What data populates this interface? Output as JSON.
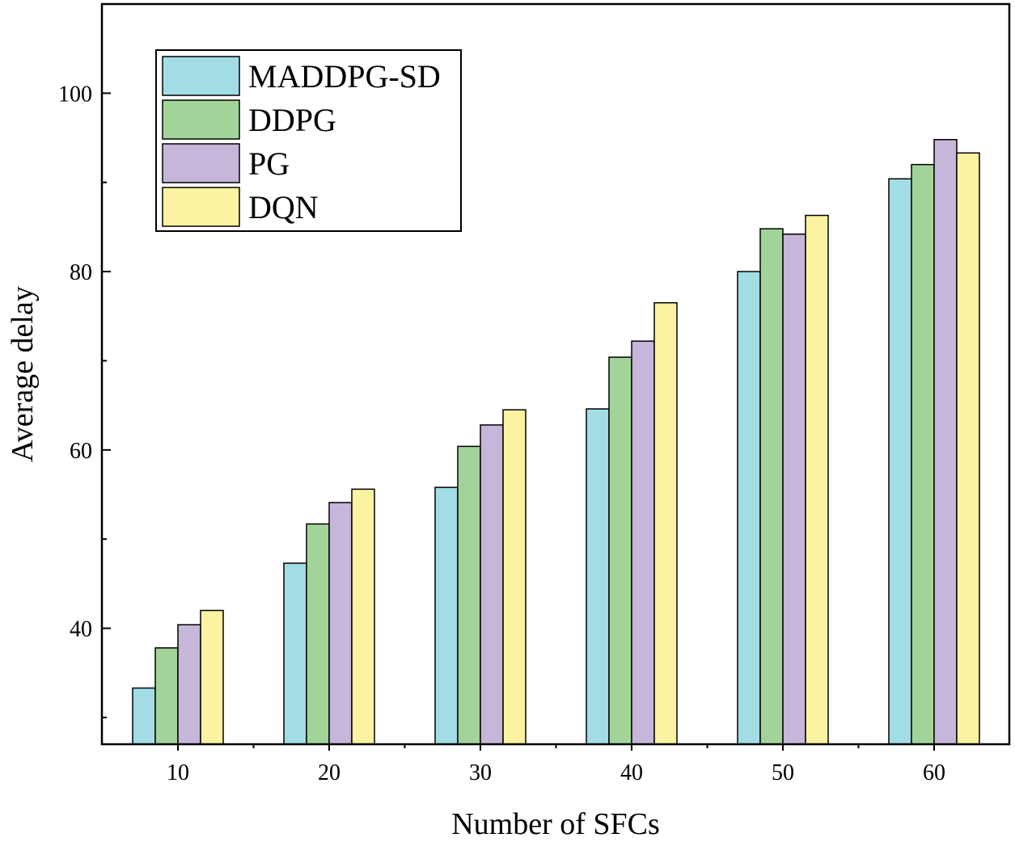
{
  "chart_data": {
    "type": "bar",
    "title": "",
    "xlabel": "Number of SFCs",
    "ylabel": "Average delay",
    "categories": [
      "10",
      "20",
      "30",
      "40",
      "50",
      "60"
    ],
    "ylim": [
      27,
      110
    ],
    "yticks": [
      40,
      60,
      80,
      100
    ],
    "grid": false,
    "legend_position": "top-left",
    "series": [
      {
        "name": "MADDPG-SD",
        "color": "#a2dde6",
        "values": [
          33.3,
          47.3,
          55.8,
          64.6,
          80.0,
          90.4
        ]
      },
      {
        "name": "DDPG",
        "color": "#a2d49a",
        "values": [
          37.8,
          51.7,
          60.4,
          70.4,
          84.8,
          92.0
        ]
      },
      {
        "name": "PG",
        "color": "#c6b6d9",
        "values": [
          40.4,
          54.1,
          62.8,
          72.2,
          84.2,
          94.8
        ]
      },
      {
        "name": "DQN",
        "color": "#fbf3a2",
        "values": [
          42.0,
          55.6,
          64.5,
          76.5,
          86.3,
          93.3
        ]
      }
    ]
  }
}
